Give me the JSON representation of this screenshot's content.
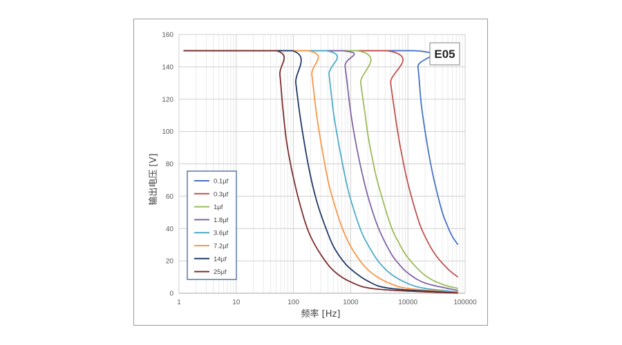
{
  "chart_data": {
    "type": "line",
    "title": "",
    "badge": "E05",
    "xlabel": "频率 [Hz]",
    "ylabel": "输出电压 [V]",
    "x_scale": "log",
    "xlim": [
      1,
      100000
    ],
    "ylim": [
      0,
      160
    ],
    "x_ticks": [
      "1",
      "10",
      "100",
      "1000",
      "10000",
      "100000"
    ],
    "y_ticks": [
      "0",
      "20",
      "40",
      "60",
      "80",
      "100",
      "120",
      "140",
      "160"
    ],
    "grid": true,
    "legend_position": "bottom-left",
    "series": [
      {
        "name": "0.1µf",
        "color": "#4472C4",
        "x": [
          1.2,
          13000,
          15000,
          17000,
          20000,
          25000,
          30000,
          40000,
          50000,
          60000,
          75000
        ],
        "y": [
          150,
          150,
          140,
          118,
          100,
          80,
          67,
          50,
          41,
          35,
          30
        ]
      },
      {
        "name": "0.3µf",
        "color": "#C0504D",
        "x": [
          1.2,
          4300,
          5000,
          6000,
          7000,
          8000,
          10000,
          15000,
          20000,
          30000,
          50000,
          75000
        ],
        "y": [
          150,
          150,
          130,
          110,
          95,
          84,
          68,
          46,
          35,
          24,
          15,
          10
        ]
      },
      {
        "name": "1µf",
        "color": "#9BBB59",
        "x": [
          1.2,
          1300,
          1500,
          1800,
          2000,
          2500,
          3000,
          5000,
          7000,
          10000,
          20000,
          40000,
          75000
        ],
        "y": [
          150,
          150,
          130,
          110,
          98,
          80,
          68,
          42,
          31,
          22,
          11,
          5.5,
          3
        ]
      },
      {
        "name": "1.8µf",
        "color": "#8064A2",
        "x": [
          1.2,
          700,
          800,
          1000,
          1200,
          1500,
          2000,
          3000,
          5000,
          7000,
          10000,
          20000,
          75000
        ],
        "y": [
          150,
          150,
          140,
          112,
          95,
          78,
          60,
          41,
          25,
          18,
          12.5,
          6.3,
          1.7
        ]
      },
      {
        "name": "3.6µf",
        "color": "#4BACC6",
        "x": [
          1.2,
          370,
          420,
          500,
          600,
          800,
          1000,
          1500,
          2000,
          3000,
          5000,
          10000,
          20000,
          75000
        ],
        "y": [
          150,
          150,
          135,
          112,
          95,
          72,
          58,
          39,
          30,
          20,
          12,
          6,
          3,
          0.8
        ]
      },
      {
        "name": "7.2µf",
        "color": "#F79646",
        "x": [
          1.2,
          180,
          210,
          250,
          300,
          400,
          500,
          700,
          1000,
          1500,
          2000,
          3000,
          5000,
          10000,
          75000
        ],
        "y": [
          150,
          150,
          135,
          112,
          94,
          70,
          57,
          41,
          29,
          19.5,
          14.5,
          9.8,
          5.9,
          3,
          0.4
        ]
      },
      {
        "name": "14µf",
        "color": "#1F3864",
        "x": [
          1.2,
          95,
          110,
          130,
          160,
          200,
          250,
          300,
          400,
          500,
          700,
          1000,
          2000,
          5000,
          75000
        ],
        "y": [
          150,
          150,
          130,
          110,
          90,
          72,
          58,
          49,
          37,
          29,
          21,
          15,
          7.5,
          3,
          0.2
        ]
      },
      {
        "name": "25µf",
        "color": "#7B2C2C",
        "x": [
          1.2,
          50,
          58,
          65,
          75,
          90,
          110,
          130,
          160,
          200,
          300,
          500,
          1000,
          3000,
          75000
        ],
        "y": [
          150,
          150,
          135,
          115,
          95,
          79,
          65,
          55,
          44,
          35,
          24,
          14,
          7,
          2.5,
          0.1
        ]
      }
    ]
  }
}
